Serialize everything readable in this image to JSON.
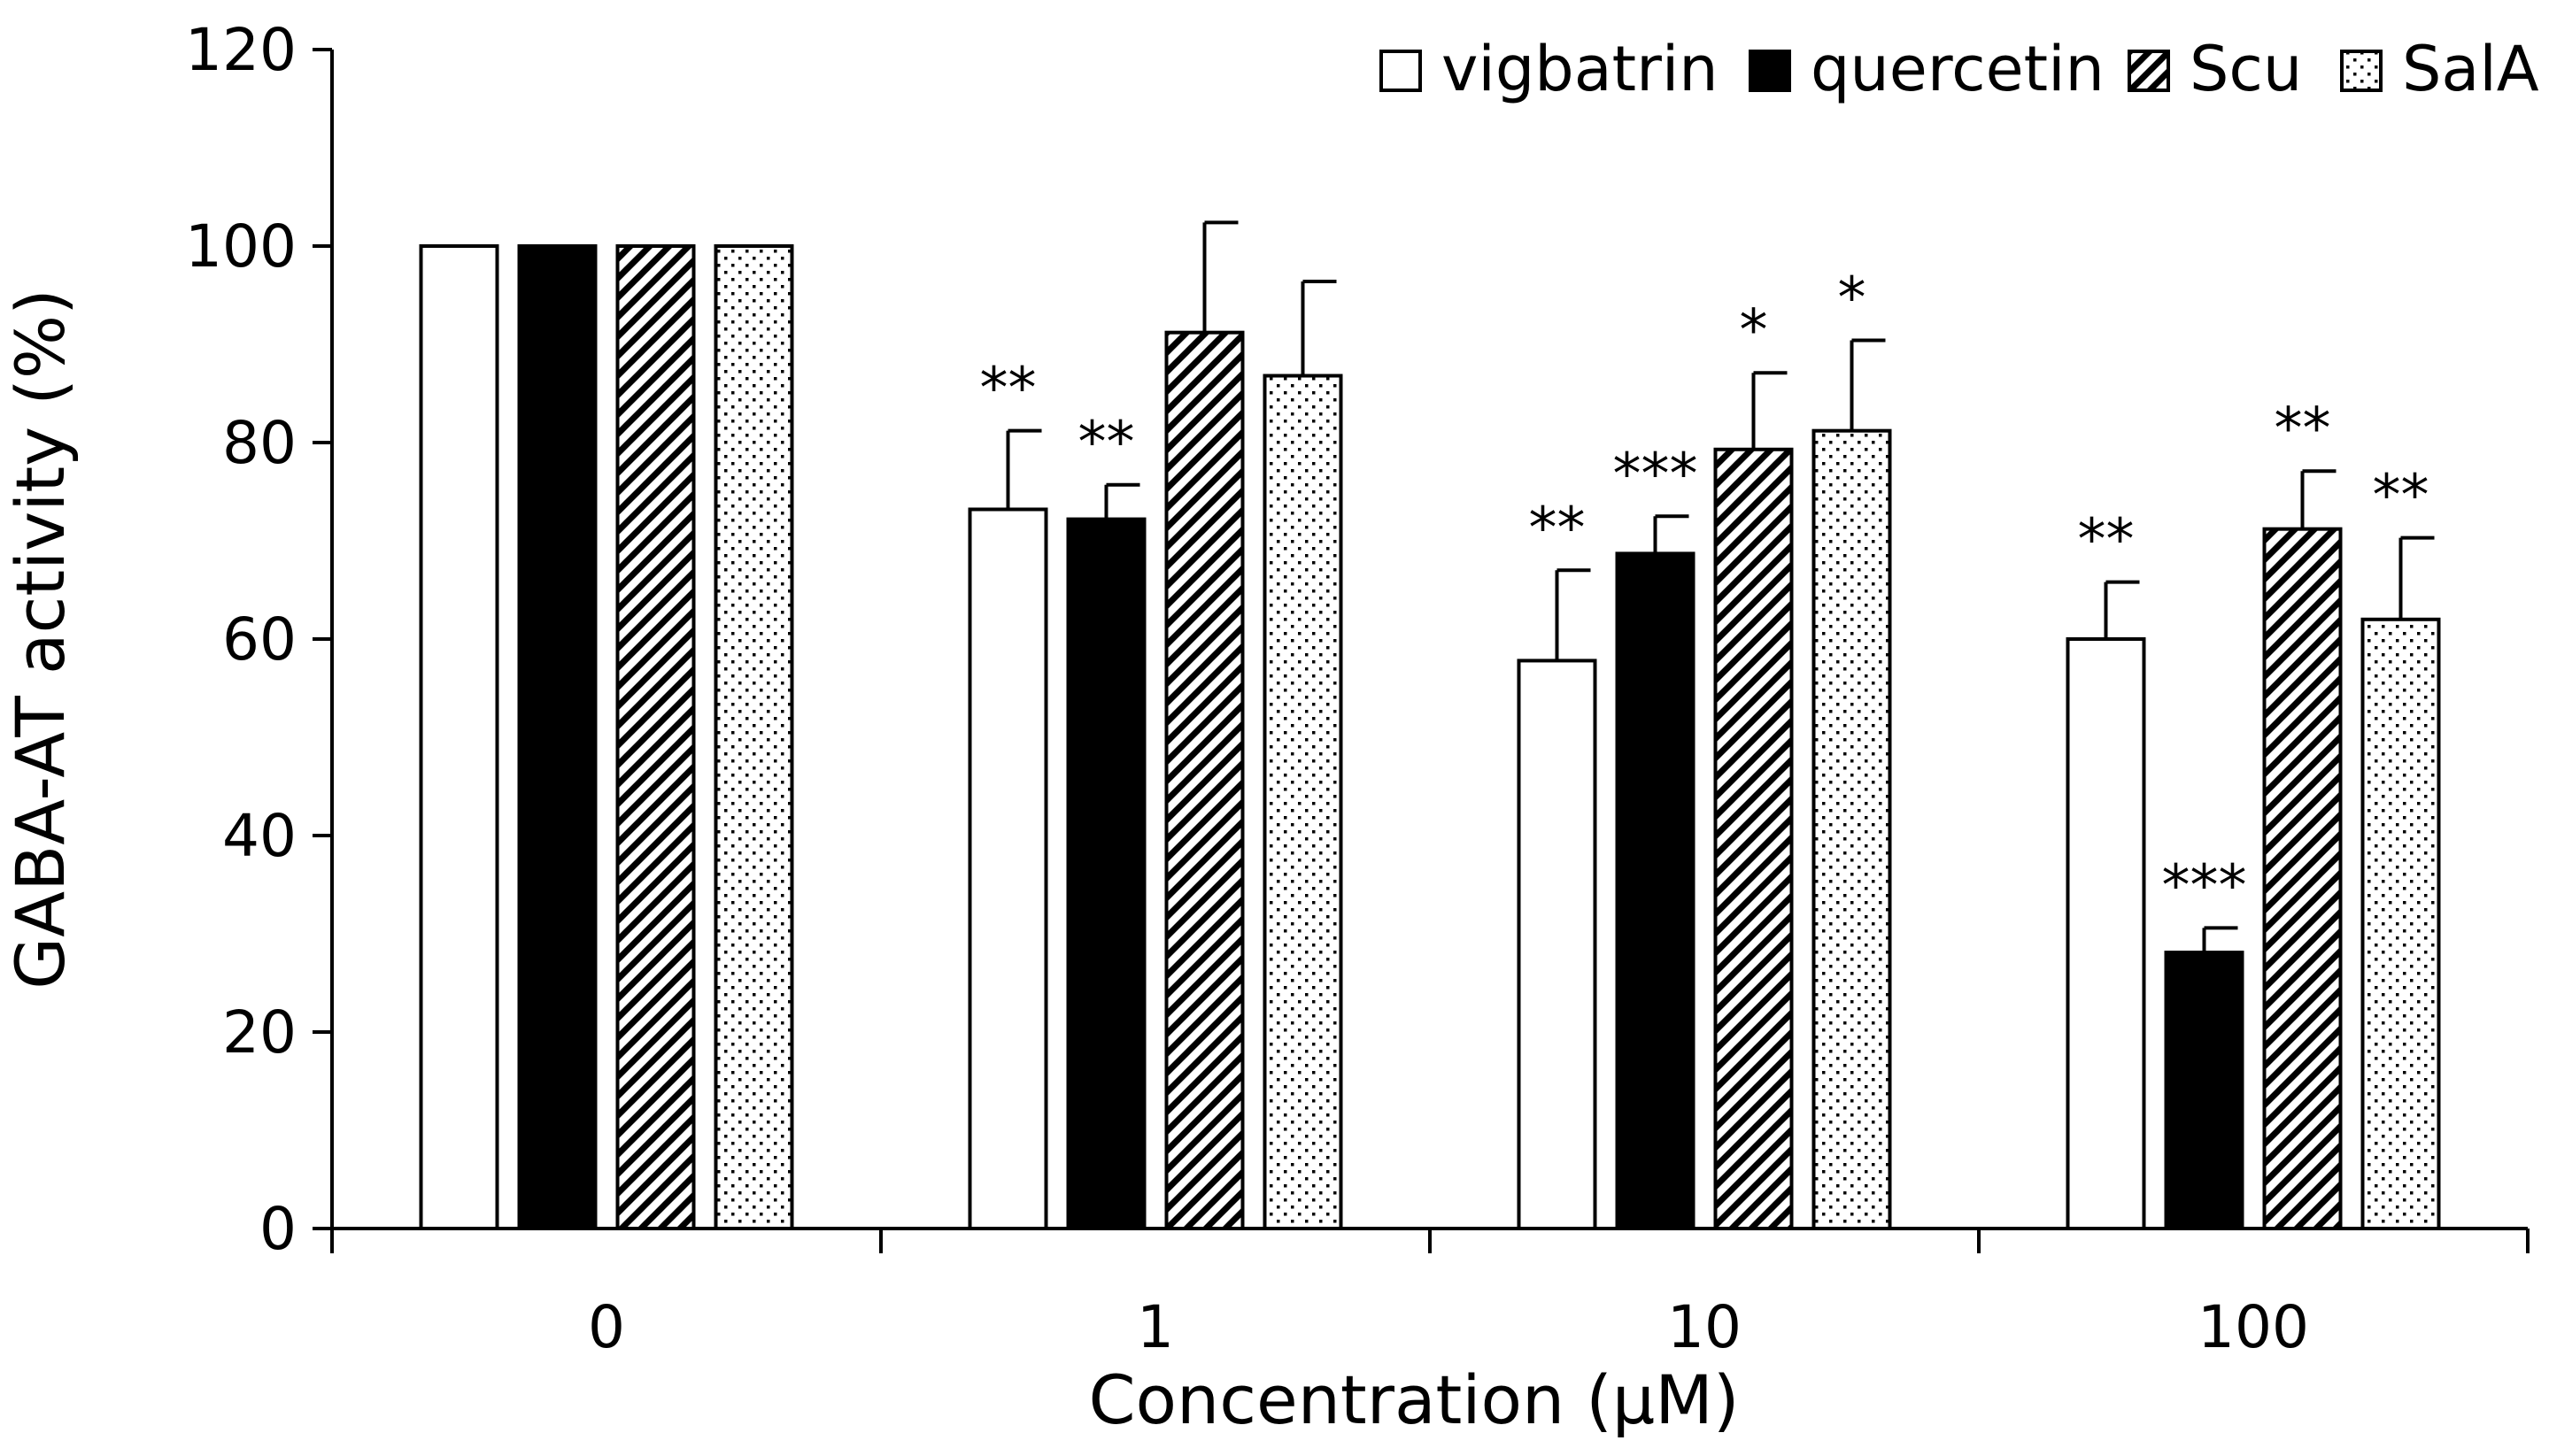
{
  "chart_data": {
    "type": "bar",
    "title": "",
    "xlabel": "Concentration (μM)",
    "ylabel": "GABA-AT activity (%)",
    "ylim": [
      0,
      120
    ],
    "yticks": [
      0,
      20,
      40,
      60,
      80,
      100,
      120
    ],
    "categories": [
      "0",
      "1",
      "10",
      "100"
    ],
    "grid": false,
    "legend_position": "top-right",
    "series": [
      {
        "name": "vigbatrin",
        "pattern": "white",
        "values": [
          100,
          73.2,
          57.8,
          60.0
        ],
        "errors": [
          0,
          8.0,
          9.2,
          5.8
        ],
        "significance": [
          "",
          "**",
          "**",
          "**"
        ]
      },
      {
        "name": "quercetin",
        "pattern": "solid-black",
        "values": [
          100,
          72.2,
          68.7,
          28.1
        ],
        "errors": [
          0.3,
          3.5,
          3.8,
          2.5
        ],
        "significance": [
          "",
          "**",
          "***",
          "***"
        ]
      },
      {
        "name": "Scu",
        "pattern": "diagonal-hatch",
        "values": [
          100,
          91.2,
          79.3,
          71.2
        ],
        "errors": [
          0,
          11.2,
          7.8,
          5.9
        ],
        "significance": [
          "",
          "",
          "*",
          "**"
        ]
      },
      {
        "name": "SalA",
        "pattern": "dotted",
        "values": [
          100,
          86.8,
          81.2,
          62.0
        ],
        "errors": [
          0,
          9.6,
          9.2,
          8.3
        ],
        "significance": [
          "",
          "",
          "*",
          "**"
        ]
      }
    ],
    "colors": {
      "bar_stroke": "#000000",
      "background": "#ffffff",
      "fill_white": "#ffffff",
      "fill_black": "#000000"
    }
  }
}
